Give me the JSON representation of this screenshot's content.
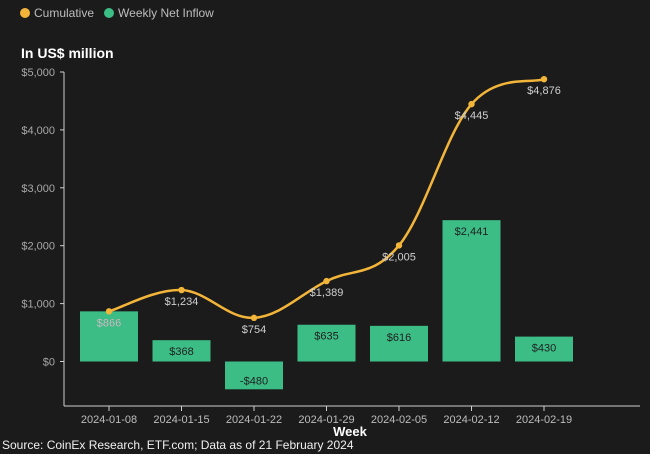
{
  "legend": [
    {
      "label": "Cumulative",
      "color": "#f2b53a"
    },
    {
      "label": "Weekly Net Inflow",
      "color": "#3dbd86"
    }
  ],
  "unit_label": "In US$ million",
  "source": "Source: CoinEx Research, ETF.com; Data as of 21 February 2024",
  "chart_data": {
    "type": "bar",
    "title": "",
    "xlabel": "Week",
    "ylabel": "",
    "ylim": [
      -700,
      5000
    ],
    "y_ticks": [
      0,
      1000,
      2000,
      3000,
      4000,
      5000
    ],
    "y_tick_labels": [
      "$0",
      "$1,000",
      "$2,000",
      "$3,000",
      "$4,000",
      "$5,000"
    ],
    "grid": false,
    "legend_position": "top-left",
    "categories": [
      "2024-01-08",
      "2024-01-15",
      "2024-01-22",
      "2024-01-29",
      "2024-02-05",
      "2024-02-12",
      "2024-02-19"
    ],
    "series": [
      {
        "name": "Weekly Net Inflow",
        "kind": "bar",
        "color": "#3dbd86",
        "values": [
          866,
          368,
          -480,
          635,
          616,
          2441,
          430
        ],
        "labels": [
          "$866",
          "$368",
          "-$480",
          "$635",
          "$616",
          "$2,441",
          "$430"
        ]
      },
      {
        "name": "Cumulative",
        "kind": "line",
        "color": "#f2b53a",
        "values": [
          866,
          1234,
          754,
          1389,
          2005,
          4445,
          4876
        ],
        "labels": [
          "$866",
          "$1,234",
          "$754",
          "$1,389",
          "$2,005",
          "$4,445",
          "$4,876"
        ]
      }
    ]
  }
}
